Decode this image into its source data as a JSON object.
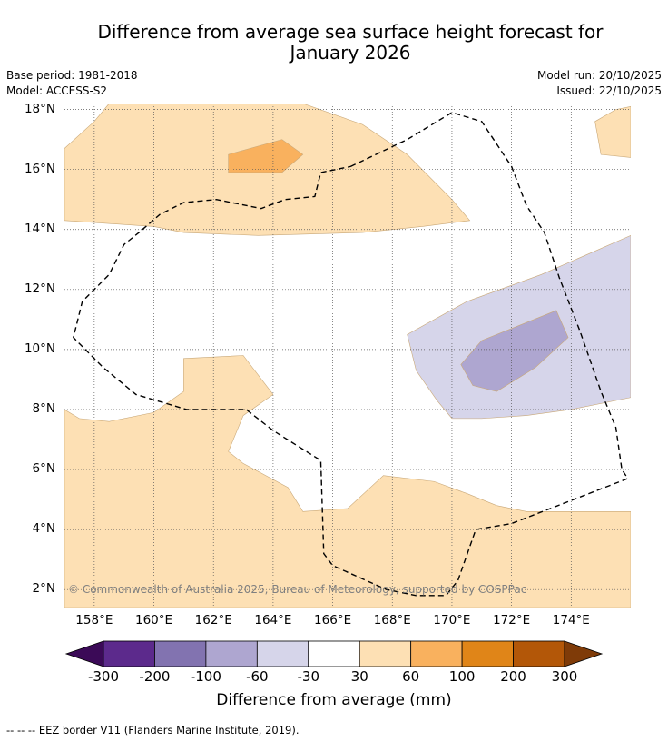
{
  "title": {
    "line1": "Difference from average sea surface height forecast for",
    "line2": "January 2026"
  },
  "meta": {
    "base_period": "Base period: 1981-2018",
    "model": "Model: ACCESS-S2",
    "model_run": "Model run: 20/10/2025",
    "issued": "Issued: 22/10/2025"
  },
  "chart_data": {
    "type": "heatmap",
    "title": "Difference from average sea surface height forecast for January 2026",
    "x_axis": {
      "label": "",
      "range": [
        157,
        176
      ],
      "ticks": [
        {
          "value": 158,
          "label": "158°E"
        },
        {
          "value": 160,
          "label": "160°E"
        },
        {
          "value": 162,
          "label": "162°E"
        },
        {
          "value": 164,
          "label": "164°E"
        },
        {
          "value": 166,
          "label": "166°E"
        },
        {
          "value": 168,
          "label": "168°E"
        },
        {
          "value": 170,
          "label": "170°E"
        },
        {
          "value": 172,
          "label": "172°E"
        },
        {
          "value": 174,
          "label": "174°E"
        }
      ]
    },
    "y_axis": {
      "label": "",
      "range": [
        1.4,
        18.2
      ],
      "ticks": [
        {
          "value": 2,
          "label": "2°N"
        },
        {
          "value": 4,
          "label": "4°N"
        },
        {
          "value": 6,
          "label": "6°N"
        },
        {
          "value": 8,
          "label": "8°N"
        },
        {
          "value": 10,
          "label": "10°N"
        },
        {
          "value": 12,
          "label": "12°N"
        },
        {
          "value": 14,
          "label": "14°N"
        },
        {
          "value": 16,
          "label": "16°N"
        },
        {
          "value": 18,
          "label": "18°N"
        }
      ]
    },
    "grid": true,
    "units": "mm",
    "colorbar": {
      "title": "Difference from average (mm)",
      "boundaries": [
        "-300",
        "-200",
        "-100",
        "-60",
        "-30",
        "30",
        "60",
        "100",
        "200",
        "300"
      ],
      "colors": [
        "#3b0a57",
        "#5c2a8c",
        "#8273b0",
        "#aea6d0",
        "#d6d5ea",
        "#ffffff",
        "#fde0b4",
        "#f9b15e",
        "#e08518",
        "#b35708",
        "#7f3b08"
      ],
      "extend": "both"
    },
    "regions": [
      {
        "class": "30 to 60",
        "description": "northern band",
        "polygon": [
          [
            157,
            15.7
          ],
          [
            157,
            16.7
          ],
          [
            158,
            17.6
          ],
          [
            158.5,
            18.2
          ],
          [
            164.5,
            18.2
          ],
          [
            165,
            18.2
          ],
          [
            167,
            17.5
          ],
          [
            168.5,
            16.5
          ],
          [
            170,
            15
          ],
          [
            170.6,
            14.3
          ],
          [
            169,
            14.1
          ],
          [
            167,
            13.9
          ],
          [
            163.5,
            13.8
          ],
          [
            161,
            13.9
          ],
          [
            160,
            14.1
          ],
          [
            157,
            14.3
          ]
        ]
      },
      {
        "class": "30 to 60",
        "description": "southern region",
        "polygon": [
          [
            157,
            8
          ],
          [
            157.5,
            7.7
          ],
          [
            158.5,
            7.6
          ],
          [
            160,
            7.9
          ],
          [
            161,
            8.6
          ],
          [
            161,
            9.7
          ],
          [
            163,
            9.8
          ],
          [
            164,
            8.5
          ],
          [
            163,
            7.8
          ],
          [
            162.5,
            6.6
          ],
          [
            163,
            6.2
          ],
          [
            164.5,
            5.4
          ],
          [
            165,
            4.6
          ],
          [
            166.5,
            4.7
          ],
          [
            167.7,
            5.8
          ],
          [
            169.4,
            5.6
          ],
          [
            170.5,
            5.2
          ],
          [
            171.5,
            4.8
          ],
          [
            172.5,
            4.6
          ],
          [
            176,
            4.6
          ],
          [
            176,
            1.4
          ],
          [
            157,
            1.4
          ]
        ]
      },
      {
        "class": "30 to 60",
        "description": "northeast corner",
        "polygon": [
          [
            174.8,
            17.6
          ],
          [
            175.5,
            18
          ],
          [
            176,
            18.1
          ],
          [
            176,
            16.4
          ],
          [
            175,
            16.5
          ]
        ]
      },
      {
        "class": "60 to 100",
        "description": "small patches",
        "polygon": [
          [
            162.5,
            16.5
          ],
          [
            164.3,
            17
          ],
          [
            165,
            16.5
          ],
          [
            164.3,
            15.9
          ],
          [
            162.5,
            15.9
          ]
        ]
      },
      {
        "class": "-60 to -30",
        "description": "eastern tropical",
        "polygon": [
          [
            168.5,
            10.5
          ],
          [
            170.5,
            11.6
          ],
          [
            173,
            12.5
          ],
          [
            176,
            13.8
          ],
          [
            176,
            8.4
          ],
          [
            174,
            8
          ],
          [
            172.5,
            7.8
          ],
          [
            171,
            7.7
          ],
          [
            170,
            7.7
          ],
          [
            169.5,
            8.3
          ],
          [
            168.8,
            9.3
          ]
        ]
      },
      {
        "class": "-100 to -60",
        "description": "eastern core",
        "polygon": [
          [
            170.3,
            9.5
          ],
          [
            171,
            10.3
          ],
          [
            172.5,
            10.9
          ],
          [
            173.5,
            11.3
          ],
          [
            173.9,
            10.4
          ],
          [
            172.8,
            9.4
          ],
          [
            171.5,
            8.6
          ],
          [
            170.7,
            8.8
          ]
        ]
      }
    ],
    "eez_border": {
      "label": "EEZ border V11 (Flanders Marine Institute, 2019)",
      "polyline": [
        [
          166.6,
          16.1
        ],
        [
          168.5,
          17
        ],
        [
          170,
          17.9
        ],
        [
          171,
          17.6
        ],
        [
          172,
          16.1
        ],
        [
          172.5,
          14.8
        ],
        [
          173.1,
          13.9
        ],
        [
          173.6,
          12.4
        ],
        [
          174.3,
          10.6
        ],
        [
          175,
          8.6
        ],
        [
          175.5,
          7.4
        ],
        [
          175.7,
          6
        ],
        [
          175.9,
          5.7
        ],
        [
          172,
          4.2
        ],
        [
          170.8,
          4
        ],
        [
          170.2,
          2.3
        ],
        [
          169.8,
          1.8
        ],
        [
          168.8,
          1.8
        ],
        [
          167.8,
          2
        ],
        [
          166,
          2.8
        ],
        [
          165.7,
          3.2
        ],
        [
          165.6,
          6.3
        ],
        [
          164,
          7.3
        ],
        [
          163.1,
          8
        ],
        [
          161.1,
          8
        ],
        [
          159.4,
          8.5
        ],
        [
          158.3,
          9.4
        ],
        [
          157.3,
          10.4
        ],
        [
          157.6,
          11.6
        ],
        [
          158.5,
          12.5
        ],
        [
          158.8,
          13.1
        ],
        [
          159,
          13.5
        ],
        [
          159.5,
          13.9
        ],
        [
          160.2,
          14.5
        ],
        [
          161,
          14.9
        ],
        [
          162.1,
          15
        ],
        [
          163.6,
          14.7
        ],
        [
          164.4,
          15
        ],
        [
          165.4,
          15.1
        ],
        [
          165.6,
          15.9
        ],
        [
          166.6,
          16.1
        ]
      ]
    }
  },
  "copyright": "© Commonwealth of Australia 2025, Bureau of Meteorology, supported by COSPPac",
  "footnote": "--  --  -- EEZ border V11 (Flanders Marine Institute, 2019)."
}
